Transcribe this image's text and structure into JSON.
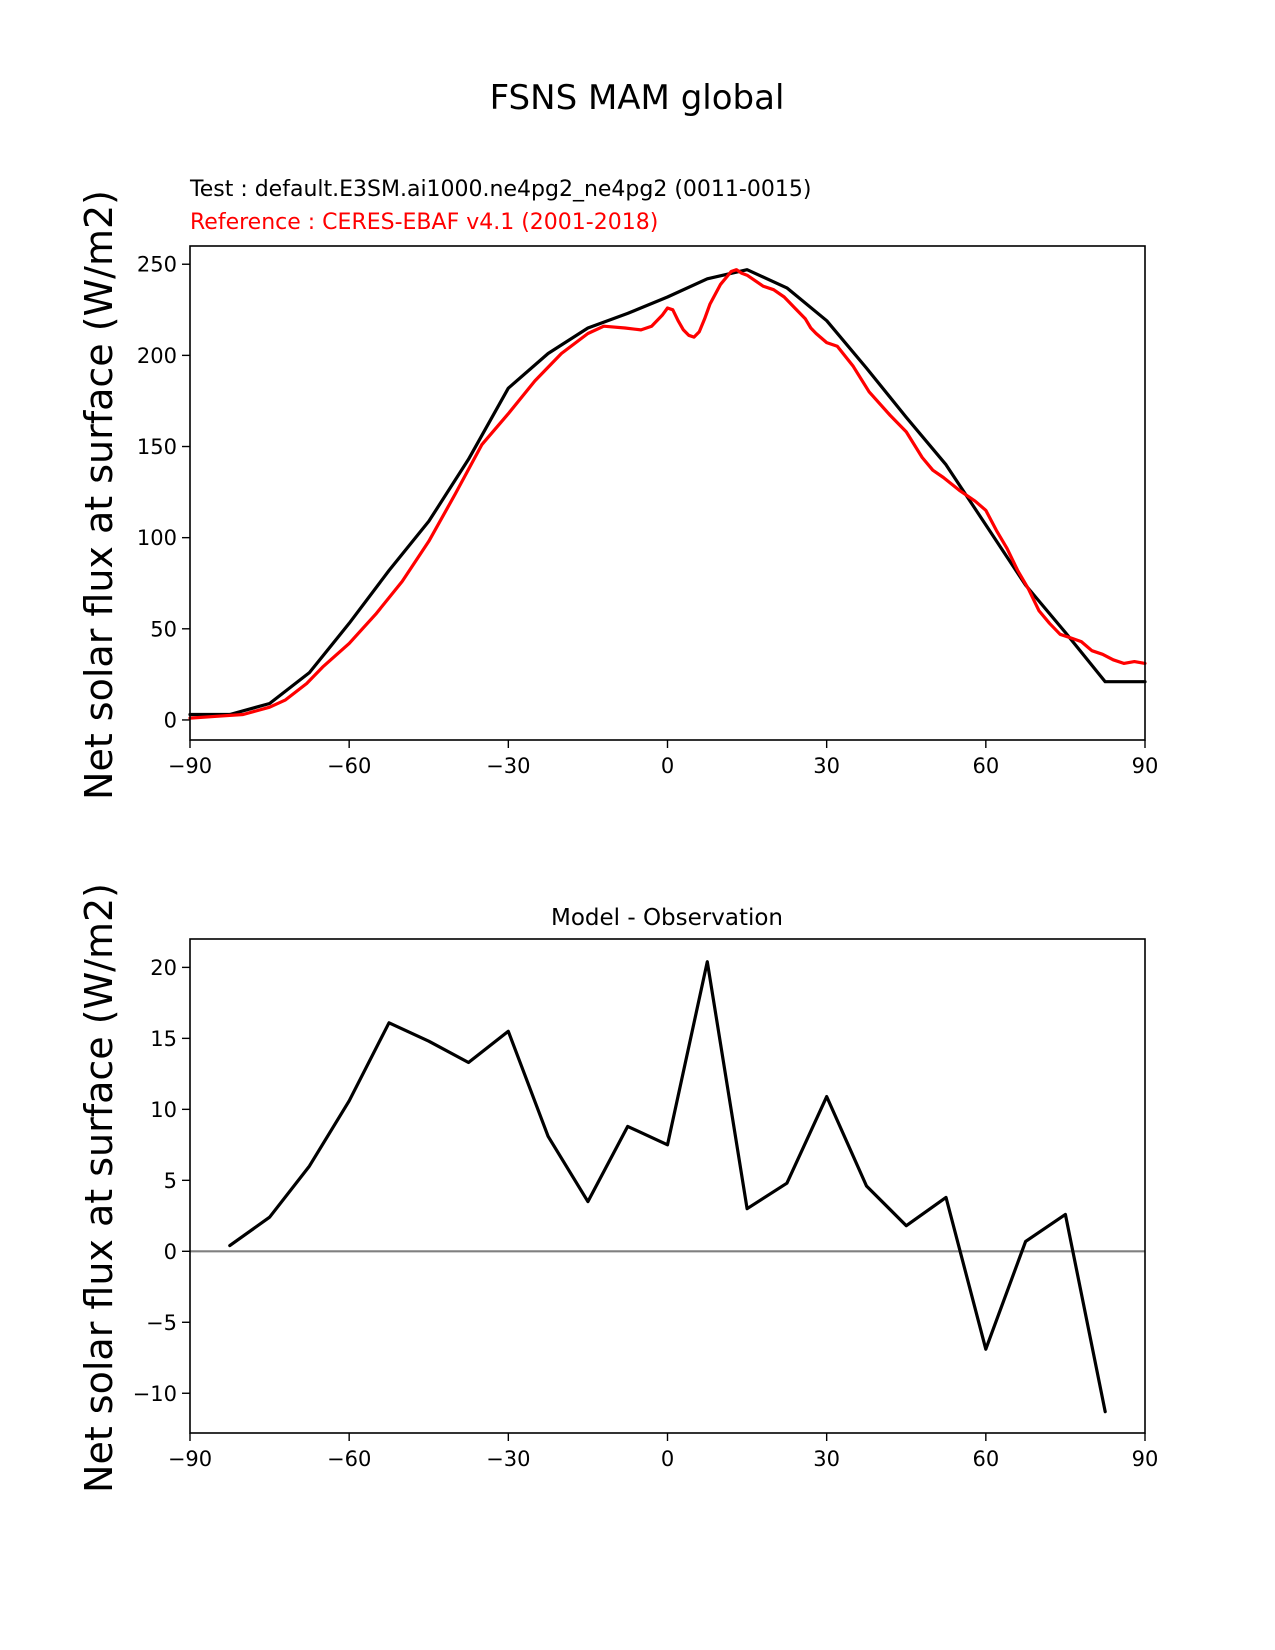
{
  "figure_title": "FSNS MAM global",
  "test_label": "Test : default.E3SM.ai1000.ne4pg2_ne4pg2 (0011-0015)",
  "reference_label": "Reference : CERES-EBAF v4.1 (2001-2018)",
  "ylabel": "Net solar flux at surface (W/m2)",
  "colors": {
    "test": "#000000",
    "reference": "#ff0000",
    "zero_line": "#808080"
  },
  "chart_data": [
    {
      "type": "line",
      "title": "",
      "xlabel": "",
      "ylabel": "Net solar flux at surface (W/m2)",
      "xlim": [
        -90,
        90
      ],
      "ylim": [
        -11,
        260
      ],
      "xticks": [
        -90,
        -60,
        -30,
        0,
        30,
        60,
        90
      ],
      "yticks": [
        0,
        50,
        100,
        150,
        200,
        250
      ],
      "grid": false,
      "series": [
        {
          "name": "Test : default.E3SM.ai1000.ne4pg2_ne4pg2 (0011-0015)",
          "color": "#000000",
          "x": [
            -90,
            -82.5,
            -75,
            -67.5,
            -60,
            -52.5,
            -45,
            -37.5,
            -30,
            -22.5,
            -15,
            -7.5,
            0,
            7.5,
            15,
            22.5,
            30,
            37.5,
            45,
            52.5,
            60,
            67.5,
            75,
            82.5,
            90
          ],
          "y": [
            3,
            3,
            9,
            26,
            53,
            82,
            109,
            143,
            182,
            201,
            215,
            223,
            232,
            242,
            247,
            237,
            219,
            193,
            166,
            140,
            107,
            74,
            48,
            21,
            21
          ]
        },
        {
          "name": "Reference : CERES-EBAF v4.1 (2001-2018)",
          "color": "#ff0000",
          "x": [
            -90,
            -85,
            -80,
            -75,
            -72,
            -68,
            -65,
            -60,
            -55,
            -50,
            -45,
            -40,
            -35,
            -30,
            -25,
            -20,
            -15,
            -12,
            -8,
            -5,
            -3,
            -1,
            0,
            1,
            2,
            3,
            4,
            5,
            6,
            7,
            8,
            10,
            12,
            13,
            14,
            15,
            16,
            18,
            20,
            22,
            24,
            26,
            27,
            28,
            30,
            32,
            35,
            38,
            42,
            45,
            48,
            50,
            52,
            55,
            58,
            60,
            62,
            64,
            66,
            68,
            70,
            72,
            74,
            76,
            78,
            80,
            82,
            84,
            86,
            88,
            90
          ],
          "y": [
            1,
            2,
            3,
            7,
            11,
            20,
            29,
            42,
            58,
            76,
            98,
            124,
            151,
            168,
            186,
            201,
            212,
            216,
            215,
            214,
            216,
            222,
            226,
            225,
            219,
            214,
            211,
            210,
            213,
            220,
            228,
            239,
            246,
            247,
            245,
            244,
            242,
            238,
            236,
            232,
            226,
            220,
            215,
            212,
            207,
            205,
            194,
            180,
            167,
            158,
            144,
            137,
            133,
            126,
            120,
            115,
            104,
            94,
            82,
            72,
            60,
            53,
            47,
            45,
            43,
            38,
            36,
            33,
            31,
            32,
            31
          ]
        }
      ]
    },
    {
      "type": "line",
      "title": "Model - Observation",
      "xlabel": "",
      "ylabel": "Net solar flux at surface (W/m2)",
      "xlim": [
        -90,
        90
      ],
      "ylim": [
        -12.8,
        22
      ],
      "xticks": [
        -90,
        -60,
        -30,
        0,
        30,
        60,
        90
      ],
      "yticks": [
        -10,
        -5,
        0,
        5,
        10,
        15,
        20
      ],
      "grid": false,
      "zero_line": 0,
      "series": [
        {
          "color": "#000000",
          "x": [
            -82.5,
            -75,
            -67.5,
            -60,
            -52.5,
            -45,
            -37.5,
            -30,
            -22.5,
            -15,
            -7.5,
            0,
            7.5,
            15,
            22.5,
            30,
            37.5,
            45,
            52.5,
            60,
            67.5,
            75,
            82.5
          ],
          "y": [
            0.4,
            2.4,
            6.0,
            10.6,
            16.1,
            14.8,
            13.3,
            15.5,
            8.1,
            3.5,
            8.8,
            7.5,
            20.4,
            3.0,
            4.8,
            10.9,
            4.6,
            1.8,
            3.8,
            -6.9,
            0.7,
            2.6,
            -11.3
          ]
        }
      ]
    }
  ]
}
